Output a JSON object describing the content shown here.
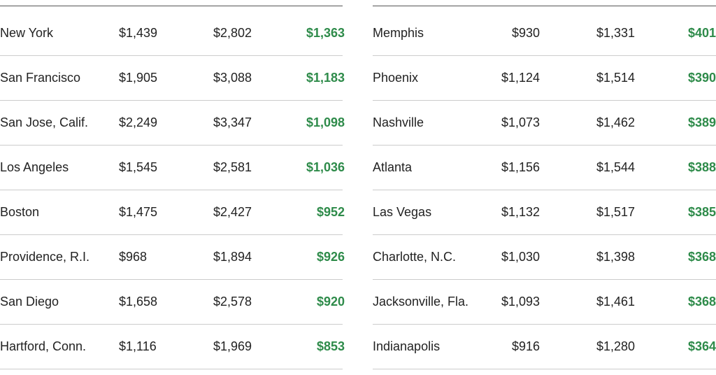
{
  "chart_data": {
    "type": "table",
    "columns": [
      "",
      "",
      "",
      ""
    ],
    "tables": [
      {
        "rows": [
          {
            "city": "New York",
            "a": "$1,439",
            "b": "$2,802",
            "diff": "$1,363"
          },
          {
            "city": "San Francisco",
            "a": "$1,905",
            "b": "$3,088",
            "diff": "$1,183"
          },
          {
            "city": "San Jose, Calif.",
            "a": "$2,249",
            "b": "$3,347",
            "diff": "$1,098"
          },
          {
            "city": "Los Angeles",
            "a": "$1,545",
            "b": "$2,581",
            "diff": "$1,036"
          },
          {
            "city": "Boston",
            "a": "$1,475",
            "b": "$2,427",
            "diff": "$952"
          },
          {
            "city": "Providence, R.I.",
            "a": "$968",
            "b": "$1,894",
            "diff": "$926"
          },
          {
            "city": "San Diego",
            "a": "$1,658",
            "b": "$2,578",
            "diff": "$920"
          },
          {
            "city": "Hartford, Conn.",
            "a": "$1,116",
            "b": "$1,969",
            "diff": "$853"
          }
        ]
      },
      {
        "rows": [
          {
            "city": "Memphis",
            "a": "$930",
            "b": "$1,331",
            "diff": "$401"
          },
          {
            "city": "Phoenix",
            "a": "$1,124",
            "b": "$1,514",
            "diff": "$390"
          },
          {
            "city": "Nashville",
            "a": "$1,073",
            "b": "$1,462",
            "diff": "$389"
          },
          {
            "city": "Atlanta",
            "a": "$1,156",
            "b": "$1,544",
            "diff": "$388"
          },
          {
            "city": "Las Vegas",
            "a": "$1,132",
            "b": "$1,517",
            "diff": "$385"
          },
          {
            "city": "Charlotte, N.C.",
            "a": "$1,030",
            "b": "$1,398",
            "diff": "$368"
          },
          {
            "city": "Jacksonville, Fla.",
            "a": "$1,093",
            "b": "$1,461",
            "diff": "$368"
          },
          {
            "city": "Indianapolis",
            "a": "$916",
            "b": "$1,280",
            "diff": "$364"
          }
        ]
      }
    ]
  },
  "colors": {
    "difference_text": "#2e8b4a",
    "row_divider": "#cccccc",
    "top_rule": "#555555"
  }
}
